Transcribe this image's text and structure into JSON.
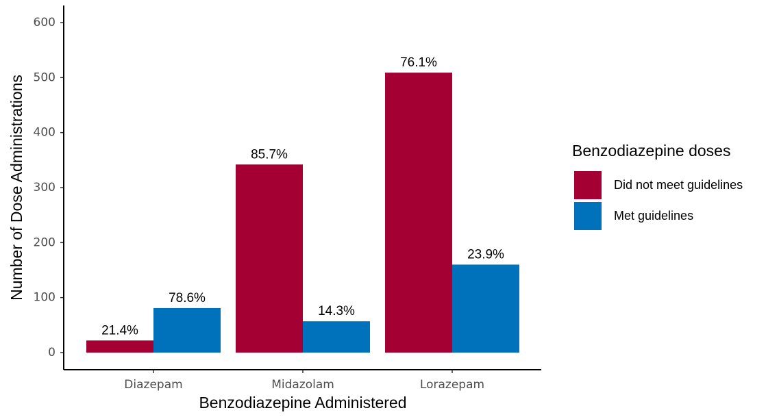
{
  "chart_data": {
    "type": "bar",
    "x_label": "Benzodiazepine Administered",
    "y_label": "Number of Dose Administrations",
    "legend_title": "Benzodiazepine doses",
    "legend_position": "right",
    "categories": [
      "Diazepam",
      "Midazolam",
      "Lorazepam"
    ],
    "series": [
      {
        "name": "Did not meet guidelines",
        "color": "#a50034",
        "values": [
          22,
          342,
          509
        ],
        "labels": [
          "21.4%",
          "85.7%",
          "76.1%"
        ]
      },
      {
        "name": "Met guidelines",
        "color": "#0072bc",
        "values": [
          81,
          57,
          160
        ],
        "labels": [
          "78.6%",
          "14.3%",
          "23.9%"
        ]
      }
    ],
    "ylim": [
      0,
      600
    ],
    "yticks": [
      0,
      100,
      200,
      300,
      400,
      500,
      600
    ]
  }
}
